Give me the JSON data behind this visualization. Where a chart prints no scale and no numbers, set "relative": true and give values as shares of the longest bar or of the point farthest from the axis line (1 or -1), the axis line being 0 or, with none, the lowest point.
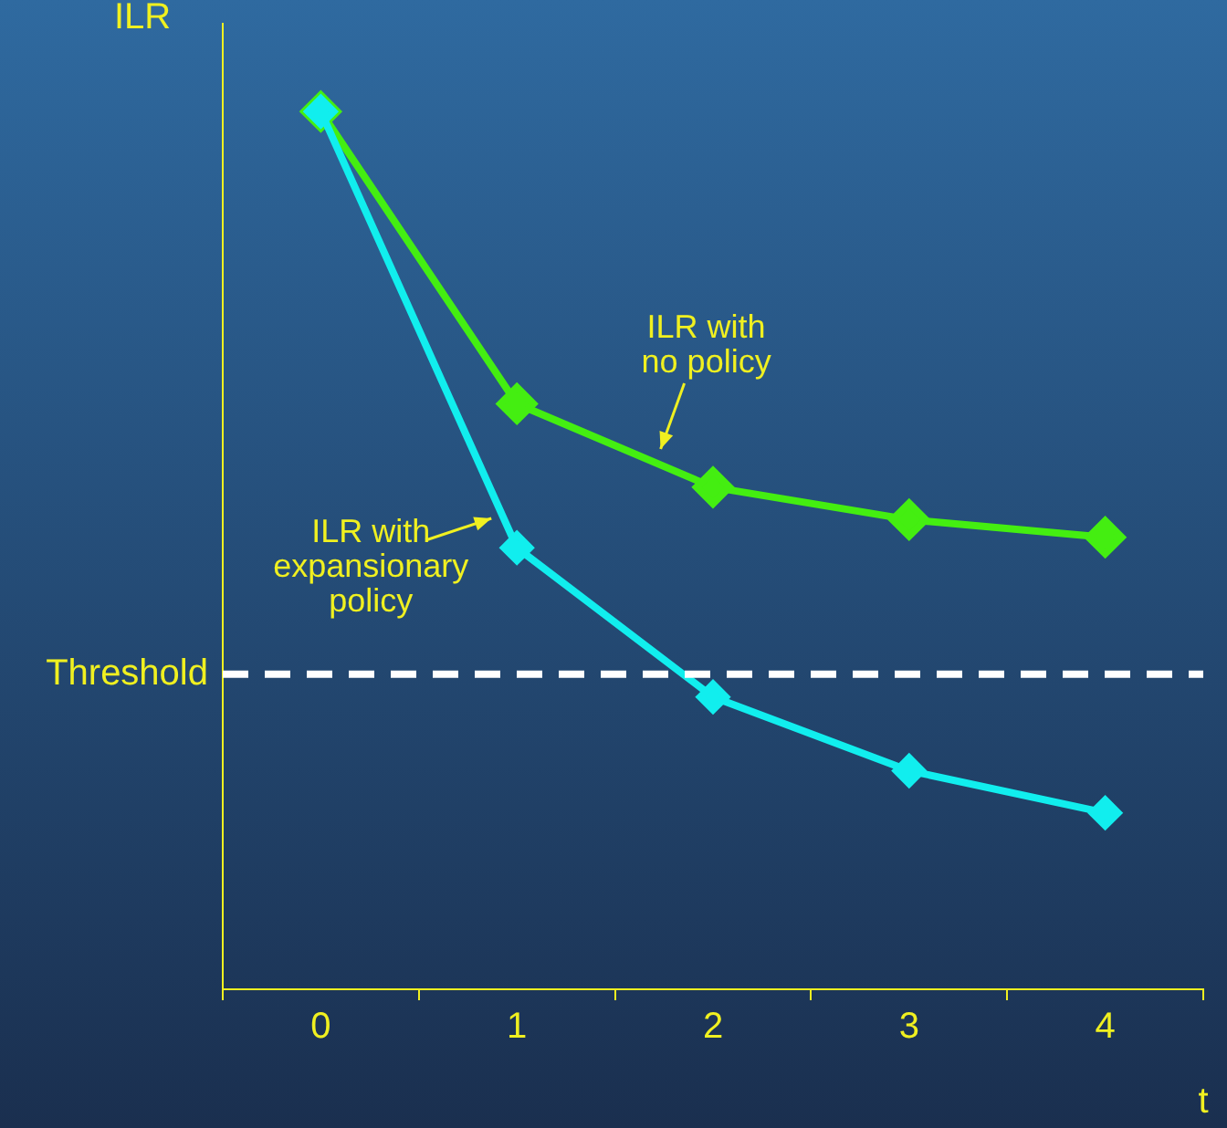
{
  "chart_data": {
    "type": "line",
    "relative": true,
    "xlabel": "t",
    "ylabel": "ILR",
    "categories": [
      "0",
      "1",
      "2",
      "3",
      "4"
    ],
    "series": [
      {
        "color": "#44ee11",
        "values": [
          1,
          0.667,
          0.572,
          0.535,
          0.515
        ]
      },
      {
        "color": "#11eeee",
        "values": [
          1,
          0.503,
          0.333,
          0.249,
          0.201
        ]
      }
    ],
    "ref_lines": [
      {
        "axis": "y",
        "value": 0.359,
        "label": "Threshold",
        "color": "#ffffff",
        "line_style": "dashed"
      }
    ],
    "annotations": [
      "ILR with\nno policy",
      "ILR with\nexpansionary\npolicy"
    ],
    "marker": "diamond",
    "line_style": "solid",
    "grid": false,
    "legend": false
  }
}
